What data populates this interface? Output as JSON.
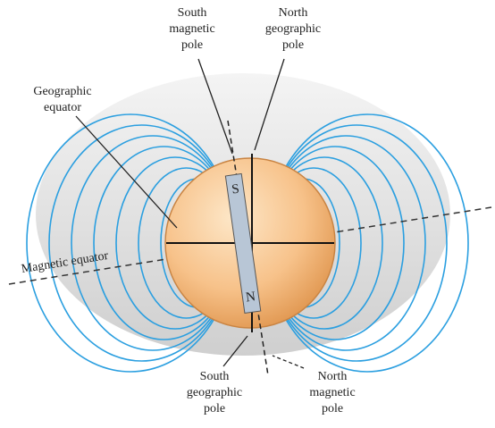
{
  "labels": {
    "south_magnetic_pole": [
      "South",
      "magnetic",
      "pole"
    ],
    "north_geographic_pole": [
      "North",
      "geographic",
      "pole"
    ],
    "geographic_equator": [
      "Geographic",
      "equator"
    ],
    "magnetic_equator": "Magnetic equator",
    "south_geographic_pole": [
      "South",
      "geographic",
      "pole"
    ],
    "north_magnetic_pole": [
      "North",
      "magnetic",
      "pole"
    ],
    "magnet_s": "S",
    "magnet_n": "N"
  }
}
